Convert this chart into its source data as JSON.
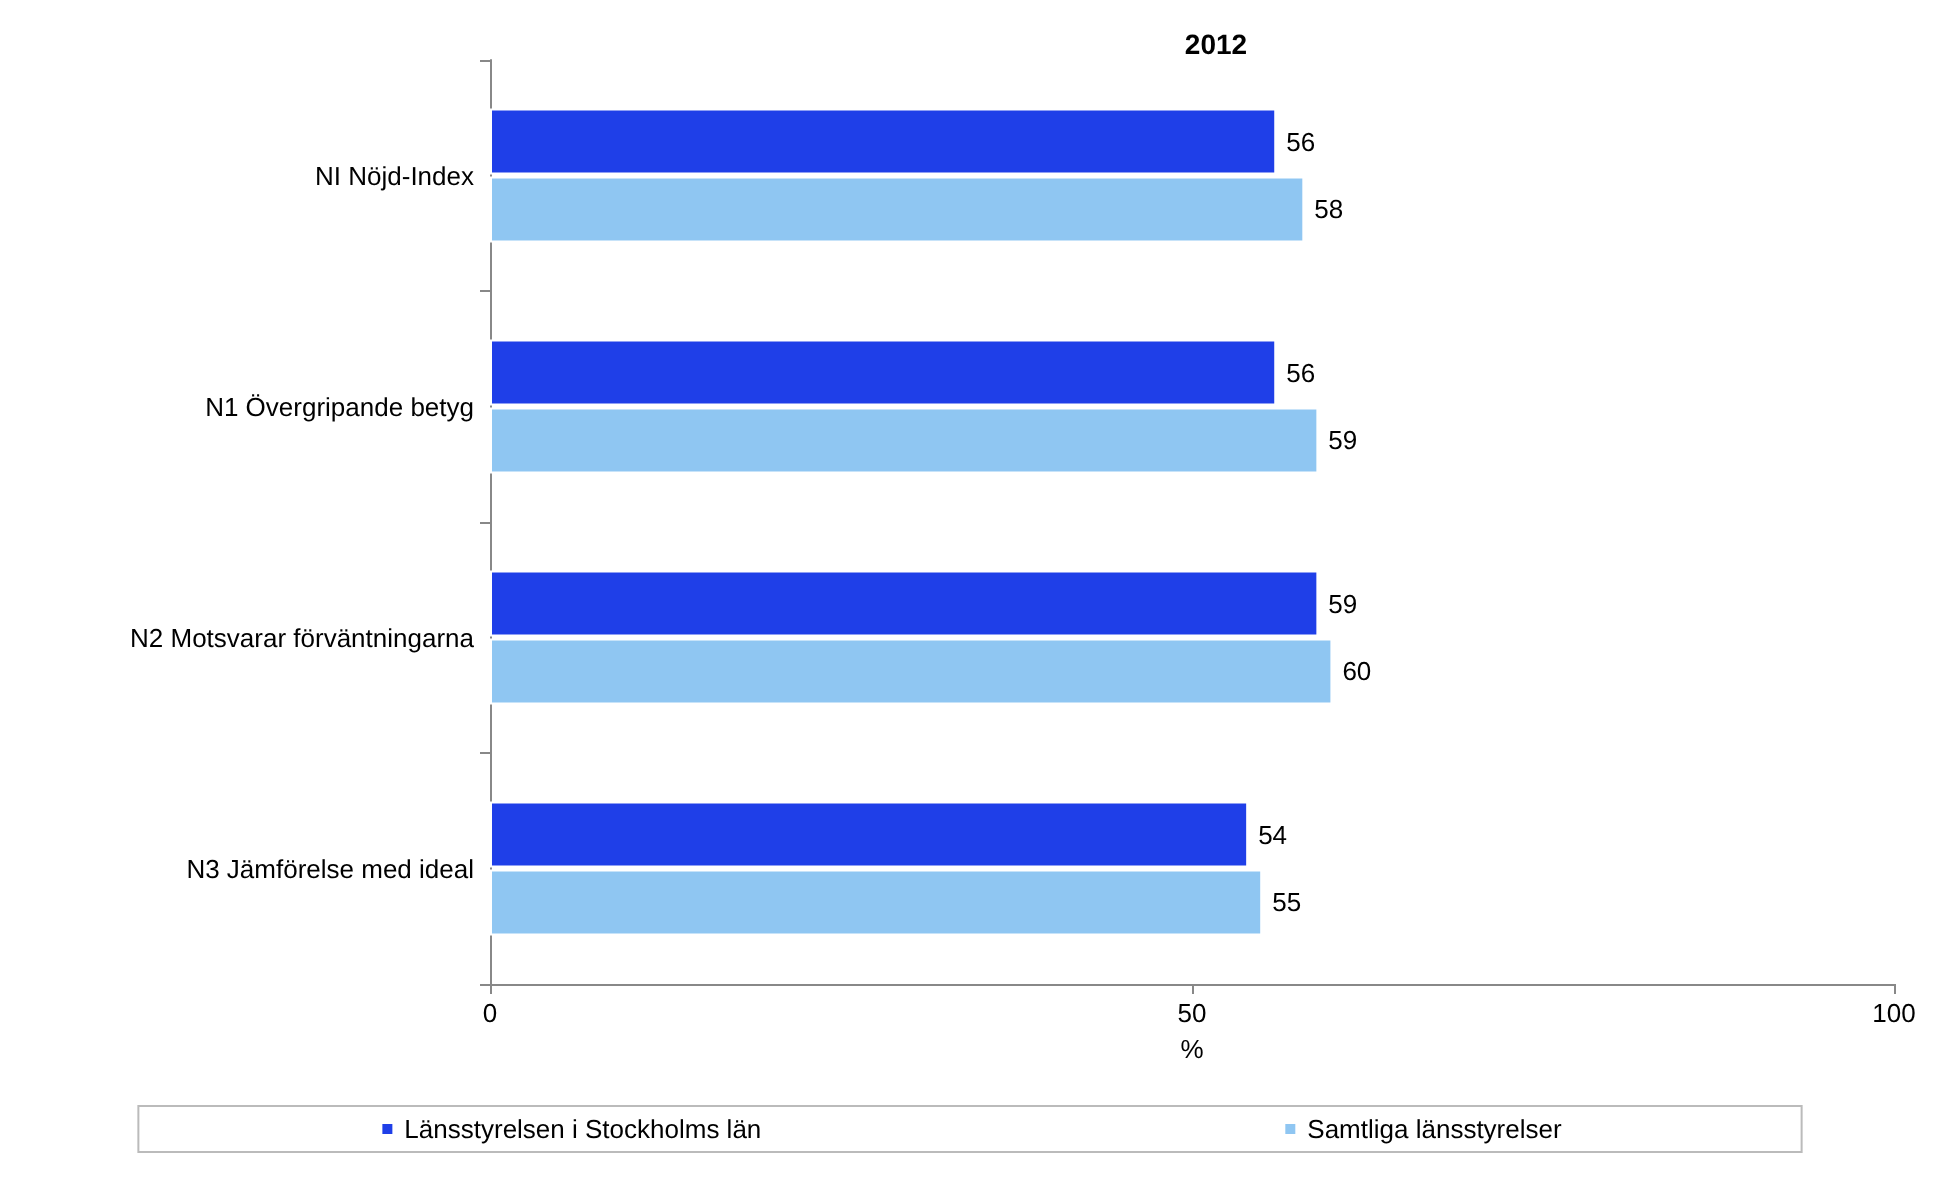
{
  "chart_data": {
    "type": "bar",
    "orientation": "horizontal",
    "title": "2012",
    "xlabel": "%",
    "categories": [
      "NI Nöjd-Index",
      "N1 Övergripande betyg",
      "N2 Motsvarar förväntningarna",
      "N3 Jämförelse med ideal"
    ],
    "series": [
      {
        "name": "Länsstyrelsen i Stockholms län",
        "color": "#1f3fe8",
        "values": [
          56,
          56,
          59,
          54
        ]
      },
      {
        "name": "Samtliga länsstyrelser",
        "color": "#8fc6f2",
        "values": [
          58,
          59,
          60,
          55
        ]
      }
    ],
    "xlim": [
      0,
      100
    ],
    "xticks": [
      0,
      50,
      100
    ],
    "data_labels": true,
    "grid": false,
    "legend": "bottom"
  }
}
